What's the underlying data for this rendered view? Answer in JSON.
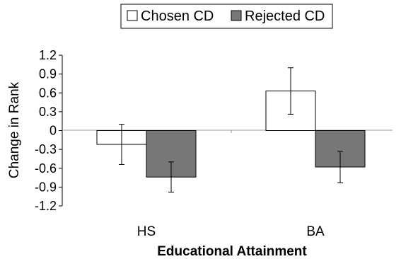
{
  "chart_data": {
    "type": "bar",
    "title": "",
    "xlabel": "Educational Attainment",
    "ylabel": "Change in Rank",
    "categories": [
      "HS",
      "BA"
    ],
    "ylim": [
      -1.2,
      1.2
    ],
    "yticks": [
      1.2,
      0.9,
      0.6,
      0.3,
      0,
      -0.3,
      -0.6,
      -0.9,
      -1.2
    ],
    "ytick_labels": [
      "1.2",
      "0.9",
      "0.6",
      "0.3",
      "0",
      "-0.3",
      "-0.6",
      "-0.9",
      "-1.2"
    ],
    "grid": false,
    "legend_position": "top-center",
    "series": [
      {
        "name": "Chosen CD",
        "color": "#ffffff",
        "values": [
          -0.22,
          0.63
        ],
        "error": [
          0.32,
          0.37
        ]
      },
      {
        "name": "Rejected CD",
        "color": "#777777",
        "values": [
          -0.74,
          -0.58
        ],
        "error": [
          0.24,
          0.25
        ]
      }
    ]
  }
}
